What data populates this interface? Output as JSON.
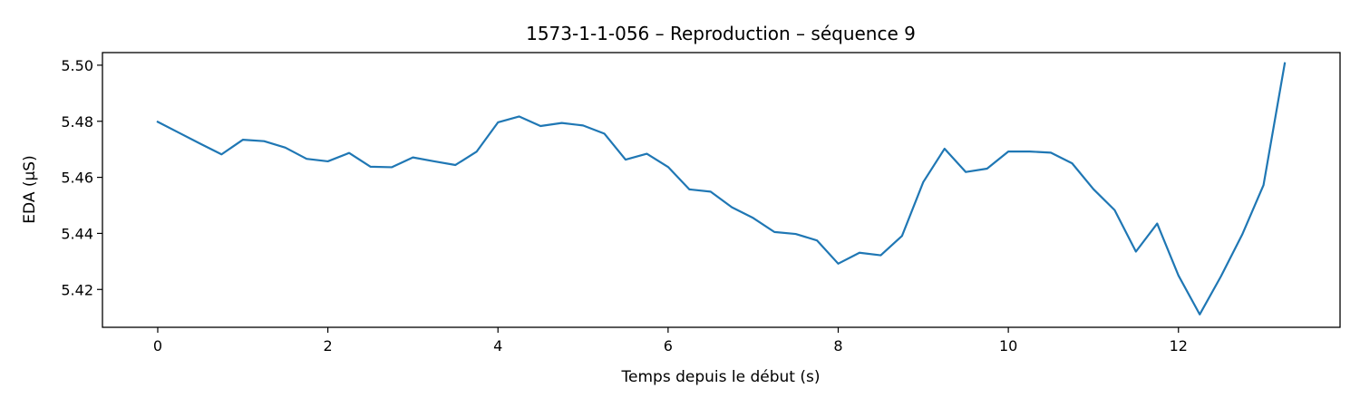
{
  "chart_data": {
    "type": "line",
    "title": "1573-1-1-056 – Reproduction – séquence 9",
    "xlabel": "Temps depuis le début (s)",
    "ylabel": "EDA (µS)",
    "xlim": [
      -0.65,
      13.9
    ],
    "ylim": [
      5.4065,
      5.5045
    ],
    "xticks": [
      0,
      2,
      4,
      6,
      8,
      10,
      12
    ],
    "yticks": [
      5.42,
      5.44,
      5.46,
      5.48,
      5.5
    ],
    "xtick_labels": [
      "0",
      "2",
      "4",
      "6",
      "8",
      "10",
      "12"
    ],
    "ytick_labels": [
      "5.42",
      "5.44",
      "5.46",
      "5.48",
      "5.50"
    ],
    "grid": false,
    "series": [
      {
        "color": "#1f77b4",
        "x": [
          0,
          0.25,
          0.5,
          0.75,
          1.0,
          1.25,
          1.5,
          1.75,
          2.0,
          2.25,
          2.5,
          2.75,
          3.0,
          3.25,
          3.5,
          3.75,
          4.0,
          4.25,
          4.5,
          4.75,
          5.0,
          5.25,
          5.5,
          5.75,
          6.0,
          6.25,
          6.5,
          6.75,
          7.0,
          7.25,
          7.5,
          7.75,
          8.0,
          8.25,
          8.5,
          8.75,
          9.0,
          9.25,
          9.5,
          9.75,
          10.0,
          10.25,
          10.5,
          10.75,
          11.0,
          11.25,
          11.5,
          11.75,
          12.0,
          12.25,
          12.5,
          12.75,
          13.0,
          13.25
        ],
        "y": [
          5.4798,
          5.4759,
          5.472,
          5.4682,
          5.4734,
          5.4729,
          5.4706,
          5.4666,
          5.4657,
          5.4687,
          5.4638,
          5.4636,
          5.4671,
          5.4657,
          5.4644,
          5.4692,
          5.4796,
          5.4817,
          5.4783,
          5.4794,
          5.4785,
          5.4756,
          5.4663,
          5.4684,
          5.4637,
          5.4557,
          5.4549,
          5.4493,
          5.4455,
          5.4405,
          5.4398,
          5.4375,
          5.4292,
          5.4331,
          5.4322,
          5.4391,
          5.4583,
          5.4702,
          5.4619,
          5.4631,
          5.4692,
          5.4692,
          5.4688,
          5.465,
          5.4558,
          5.4483,
          5.4335,
          5.4435,
          5.425,
          5.4111,
          5.4247,
          5.4396,
          5.4572,
          5.5007
        ]
      }
    ]
  }
}
